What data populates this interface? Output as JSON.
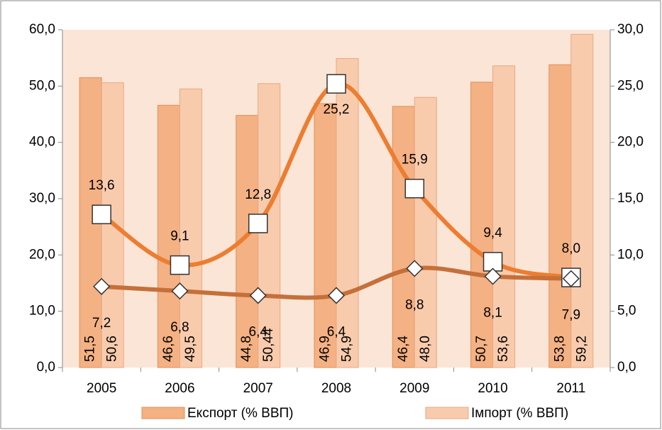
{
  "chart_data": {
    "type": "bar_line",
    "categories": [
      "2005",
      "2006",
      "2007",
      "2008",
      "2009",
      "2010",
      "2011"
    ],
    "series": [
      {
        "name": "Експорт (% ВВП)",
        "type": "bar",
        "color": "#f4b183",
        "values": [
          51.5,
          46.6,
          44.8,
          46.9,
          46.4,
          50.7,
          53.8
        ],
        "value_labels": [
          "51,5",
          "46,6",
          "44,8",
          "46,9",
          "46,4",
          "50,7",
          "53,8"
        ]
      },
      {
        "name": "Імпорт (% ВВП)",
        "type": "bar",
        "color": "#f8cbad",
        "values": [
          50.6,
          49.5,
          50.44,
          54.9,
          48.0,
          53.6,
          59.2
        ],
        "value_labels": [
          "50,6",
          "49,5",
          "50,44",
          "54,9",
          "48,0",
          "53,6",
          "59,2"
        ]
      },
      {
        "type": "line",
        "axis": "y2",
        "marker": "square",
        "color": "#ed7d31",
        "values": [
          13.6,
          9.1,
          12.8,
          25.2,
          15.9,
          9.4,
          8.0
        ],
        "value_labels": [
          "13,6",
          "9,1",
          "12,8",
          "25,2",
          "15,9",
          "9,4",
          "8,0"
        ]
      },
      {
        "type": "line",
        "axis": "y2",
        "marker": "diamond",
        "color": "#c5703a",
        "values": [
          7.2,
          6.8,
          6.4,
          6.4,
          8.8,
          8.1,
          7.9
        ],
        "value_labels": [
          "7,2",
          "6,8",
          "6,4",
          "6,4",
          "8,8",
          "8,1",
          "7,9"
        ]
      }
    ],
    "ylim": [
      0,
      60
    ],
    "yticks": [
      {
        "value": 0,
        "label": "0,0"
      },
      {
        "value": 10,
        "label": "10,0"
      },
      {
        "value": 20,
        "label": "20,0"
      },
      {
        "value": 30,
        "label": "30,0"
      },
      {
        "value": 40,
        "label": "40,0"
      },
      {
        "value": 50,
        "label": "50,0"
      },
      {
        "value": 60,
        "label": "60,0"
      }
    ],
    "y2lim": [
      0,
      30
    ],
    "y2ticks": [
      {
        "value": 0,
        "label": "0,0"
      },
      {
        "value": 5,
        "label": "5,0"
      },
      {
        "value": 10,
        "label": "10,0"
      },
      {
        "value": 15,
        "label": "15,0"
      },
      {
        "value": 20,
        "label": "20,0"
      },
      {
        "value": 25,
        "label": "25,0"
      },
      {
        "value": 30,
        "label": "30,0"
      }
    ],
    "legend": "bottom"
  }
}
